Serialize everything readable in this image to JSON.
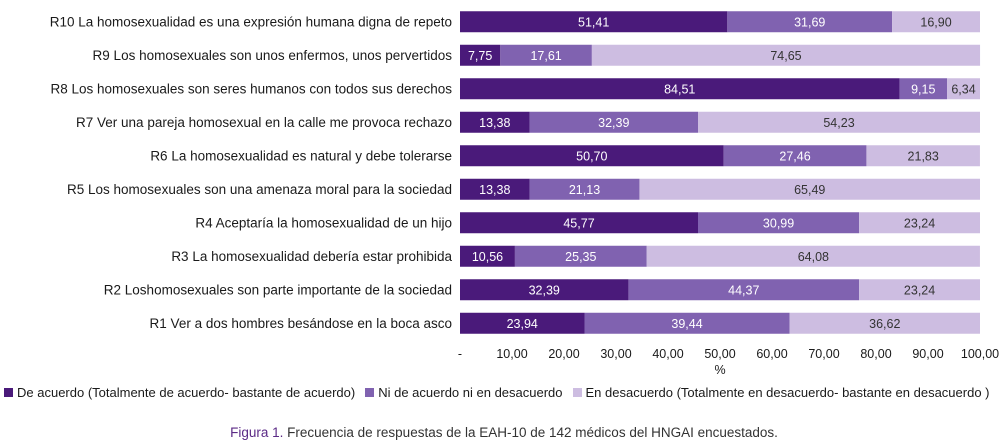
{
  "chart_data": {
    "type": "bar",
    "orientation": "horizontal",
    "stacked": true,
    "categories": [
      "R10 La homosexualidad es una expresión humana digna de repeto",
      "R9 Los homosexuales son unos enfermos, unos pervertidos",
      "R8 Los homosexuales son seres humanos con todos sus derechos",
      "R7 Ver una pareja homosexual en la calle me provoca rechazo",
      "R6 La homosexualidad es natural y debe tolerarse",
      "R5 Los homosexuales son una amenaza moral para la sociedad",
      "R4 Aceptaría la homosexualidad de un hijo",
      "R3 La homosexualidad debería estar prohibida",
      "R2 Loshomosexuales son parte importante de la sociedad",
      "R1 Ver a dos hombres besándose en la boca asco"
    ],
    "series": [
      {
        "name": "De acuerdo (Totalmente de acuerdo- bastante de acuerdo)",
        "color": "#4a1a7a",
        "text_color": "#ffffff",
        "values": [
          51.41,
          7.75,
          84.51,
          13.38,
          50.7,
          13.38,
          45.77,
          10.56,
          32.39,
          23.94
        ],
        "labels": [
          "51,41",
          "7,75",
          "84,51",
          "13,38",
          "50,70",
          "13,38",
          "45,77",
          "10,56",
          "32,39",
          "23,94"
        ]
      },
      {
        "name": "Ni de acuerdo ni en desacuerdo",
        "color": "#8062b0",
        "text_color": "#ffffff",
        "values": [
          31.69,
          17.61,
          9.15,
          32.39,
          27.46,
          21.13,
          30.99,
          25.35,
          44.37,
          39.44
        ],
        "labels": [
          "31,69",
          "17,61",
          "9,15",
          "32,39",
          "27,46",
          "21,13",
          "30,99",
          "25,35",
          "44,37",
          "39,44"
        ]
      },
      {
        "name": "En desacuerdo (Totalmente en desacuerdo- bastante en desacuerdo )",
        "color": "#cdbde1",
        "text_color": "#333333",
        "values": [
          16.9,
          74.65,
          6.34,
          54.23,
          21.83,
          65.49,
          23.24,
          64.08,
          23.24,
          36.62
        ],
        "labels": [
          "16,90",
          "74,65",
          "6,34",
          "54,23",
          "21,83",
          "65,49",
          "23,24",
          "64,08",
          "23,24",
          "36,62"
        ]
      }
    ],
    "xlim": [
      0,
      100
    ],
    "xticks": [
      0,
      10,
      20,
      30,
      40,
      50,
      60,
      70,
      80,
      90,
      100
    ],
    "xtick_labels": [
      "-",
      "10,00",
      "20,00",
      "30,00",
      "40,00",
      "50,00",
      "60,00",
      "70,00",
      "80,00",
      "90,00",
      "100,00"
    ],
    "xlabel": "%",
    "legend_placement": "bottom",
    "grid": false
  },
  "caption": {
    "figure_label": "Figura 1.",
    "text": " Frecuencia de respuestas de la EAH-10 de 142 médicos del HNGAI encuestados."
  }
}
